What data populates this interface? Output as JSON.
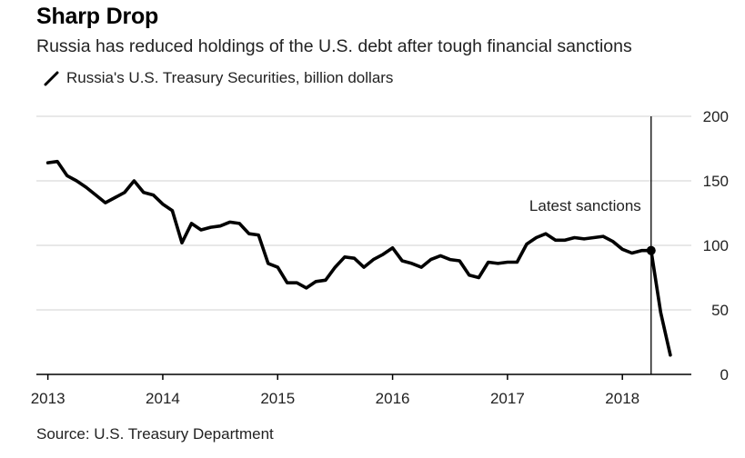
{
  "chart_data": {
    "type": "line",
    "title": "Sharp Drop",
    "subtitle": "Russia has reduced holdings of the U.S. debt after tough financial sanctions",
    "legend": "top-left",
    "source": "Source: U.S. Treasury Department",
    "grid": true,
    "colors": {
      "line": "#000000",
      "grid": "#d9d9d9",
      "axis": "#000000"
    },
    "xlim": [
      2012.9,
      2018.6
    ],
    "ylim": [
      0,
      200
    ],
    "x_ticks": [
      2013,
      2014,
      2015,
      2016,
      2017,
      2018
    ],
    "x_tick_labels": [
      "2013",
      "2014",
      "2015",
      "2016",
      "2017",
      "2018"
    ],
    "y_ticks": [
      0,
      50,
      100,
      150,
      200
    ],
    "y_tick_labels": [
      "0",
      "50",
      "100",
      "150",
      "200"
    ],
    "series": [
      {
        "name": "Russia's U.S. Treasury Securities, billion dollars",
        "x": [
          2013.0,
          2013.083,
          2013.167,
          2013.25,
          2013.333,
          2013.417,
          2013.5,
          2013.583,
          2013.667,
          2013.75,
          2013.833,
          2013.917,
          2014.0,
          2014.083,
          2014.167,
          2014.25,
          2014.333,
          2014.417,
          2014.5,
          2014.583,
          2014.667,
          2014.75,
          2014.833,
          2014.917,
          2015.0,
          2015.083,
          2015.167,
          2015.25,
          2015.333,
          2015.417,
          2015.5,
          2015.583,
          2015.667,
          2015.75,
          2015.833,
          2015.917,
          2016.0,
          2016.083,
          2016.167,
          2016.25,
          2016.333,
          2016.417,
          2016.5,
          2016.583,
          2016.667,
          2016.75,
          2016.833,
          2016.917,
          2017.0,
          2017.083,
          2017.167,
          2017.25,
          2017.333,
          2017.417,
          2017.5,
          2017.583,
          2017.667,
          2017.75,
          2017.833,
          2017.917,
          2018.0,
          2018.083,
          2018.167,
          2018.25,
          2018.333,
          2018.417
        ],
        "y": [
          164,
          165,
          154,
          150,
          145,
          139,
          133,
          137,
          141,
          150,
          141,
          139,
          132,
          127,
          102,
          117,
          112,
          114,
          115,
          118,
          117,
          109,
          108,
          86,
          83,
          71,
          71,
          67,
          72,
          73,
          83,
          91,
          90,
          83,
          89,
          93,
          98,
          88,
          86,
          83,
          89,
          92,
          89,
          88,
          77,
          75,
          87,
          86,
          87,
          87,
          101,
          106,
          109,
          104,
          104,
          106,
          105,
          106,
          107,
          103,
          97,
          94,
          96,
          96,
          48,
          15
        ]
      }
    ],
    "annotations": [
      {
        "text": "Latest sanctions",
        "x": 2018.25,
        "y": 96
      }
    ]
  }
}
